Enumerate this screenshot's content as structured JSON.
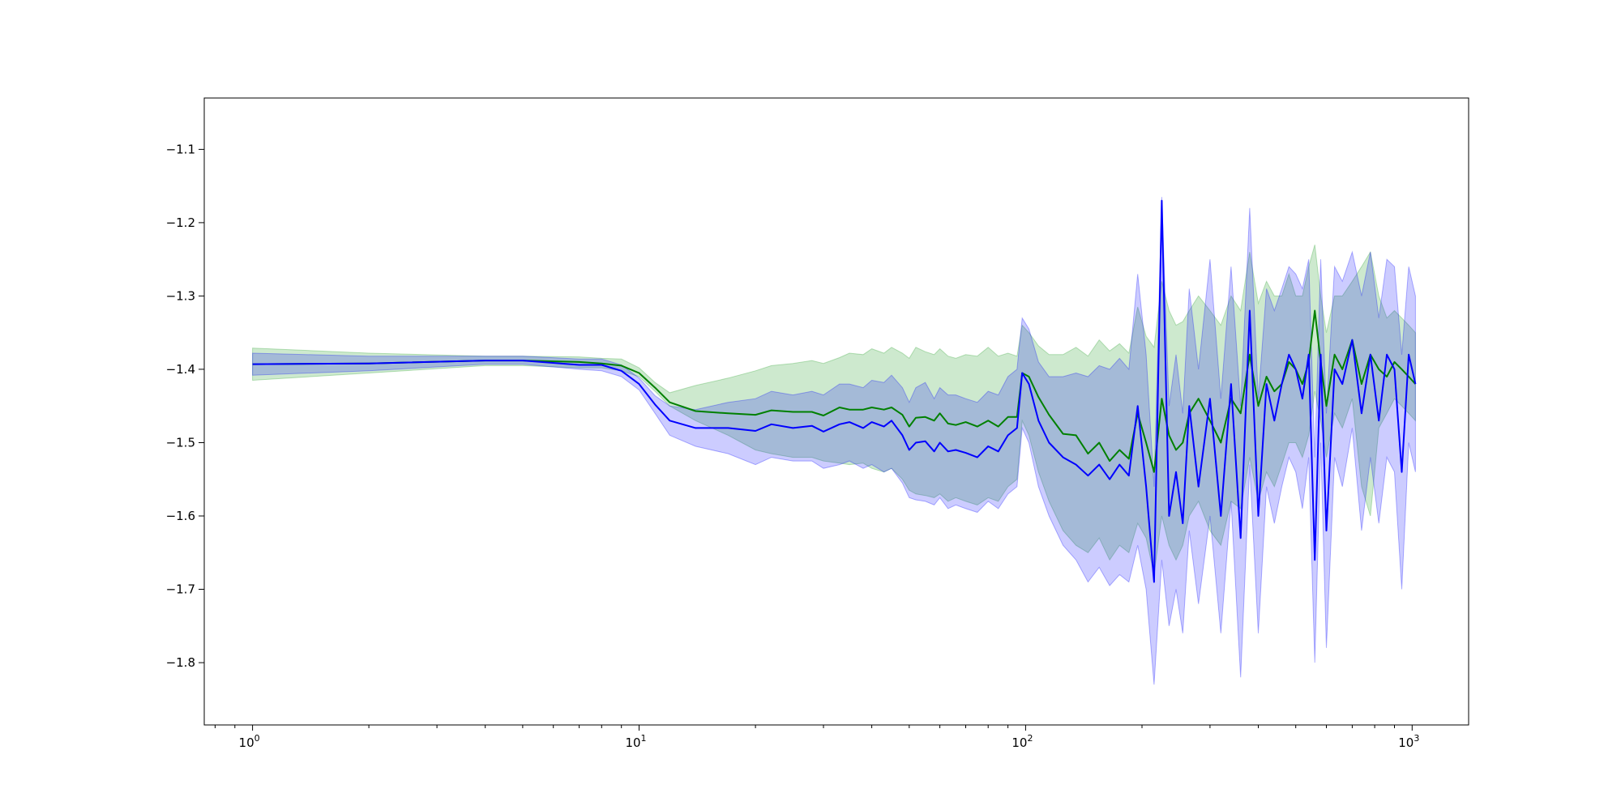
{
  "chart_data": {
    "type": "line",
    "title": "",
    "xlabel": "",
    "ylabel": "",
    "x_scale": "log",
    "xlim": [
      0.75,
      1400
    ],
    "ylim": [
      -1.885,
      -1.03
    ],
    "grid": false,
    "legend": "none",
    "x_ticks": [
      {
        "base": "10",
        "exp": "0",
        "value": 1
      },
      {
        "base": "10",
        "exp": "1",
        "value": 10
      },
      {
        "base": "10",
        "exp": "2",
        "value": 100
      },
      {
        "base": "10",
        "exp": "3",
        "value": 1000
      }
    ],
    "y_ticks": [
      {
        "label": "−1.1",
        "value": -1.1
      },
      {
        "label": "−1.2",
        "value": -1.2
      },
      {
        "label": "−1.3",
        "value": -1.3
      },
      {
        "label": "−1.4",
        "value": -1.4
      },
      {
        "label": "−1.5",
        "value": -1.5
      },
      {
        "label": "−1.6",
        "value": -1.6
      },
      {
        "label": "−1.7",
        "value": -1.7
      },
      {
        "label": "−1.8",
        "value": -1.8
      }
    ],
    "series": [
      {
        "color": "#008000",
        "band_color": "#4caf50",
        "band_opacity": 0.28,
        "x": [
          1,
          2,
          4,
          5,
          7,
          8,
          9,
          10,
          11,
          12,
          14,
          17,
          20,
          22,
          25,
          28,
          30,
          33,
          35,
          38,
          40,
          43,
          45,
          48,
          50,
          52,
          55,
          58,
          60,
          63,
          66,
          70,
          75,
          80,
          85,
          90,
          95,
          98,
          102,
          108,
          115,
          125,
          135,
          145,
          155,
          165,
          175,
          185,
          195,
          205,
          215,
          225,
          235,
          245,
          255,
          265,
          280,
          300,
          320,
          340,
          360,
          380,
          400,
          420,
          440,
          460,
          480,
          500,
          520,
          540,
          560,
          580,
          600,
          630,
          660,
          700,
          740,
          780,
          820,
          860,
          900,
          940,
          980,
          1020
        ],
        "y": [
          -1.393,
          -1.392,
          -1.388,
          -1.388,
          -1.39,
          -1.392,
          -1.395,
          -1.405,
          -1.425,
          -1.445,
          -1.457,
          -1.46,
          -1.462,
          -1.456,
          -1.458,
          -1.458,
          -1.463,
          -1.452,
          -1.455,
          -1.455,
          -1.452,
          -1.455,
          -1.452,
          -1.462,
          -1.478,
          -1.466,
          -1.465,
          -1.47,
          -1.46,
          -1.474,
          -1.476,
          -1.472,
          -1.478,
          -1.47,
          -1.478,
          -1.465,
          -1.465,
          -1.405,
          -1.41,
          -1.438,
          -1.462,
          -1.488,
          -1.49,
          -1.515,
          -1.5,
          -1.525,
          -1.51,
          -1.522,
          -1.46,
          -1.5,
          -1.54,
          -1.44,
          -1.49,
          -1.51,
          -1.5,
          -1.46,
          -1.44,
          -1.47,
          -1.5,
          -1.44,
          -1.46,
          -1.38,
          -1.45,
          -1.41,
          -1.43,
          -1.42,
          -1.39,
          -1.4,
          -1.42,
          -1.39,
          -1.32,
          -1.39,
          -1.45,
          -1.38,
          -1.4,
          -1.36,
          -1.42,
          -1.38,
          -1.4,
          -1.41,
          -1.39,
          -1.4,
          -1.41,
          -1.42
        ],
        "lower": [
          -1.415,
          -1.405,
          -1.395,
          -1.395,
          -1.398,
          -1.398,
          -1.402,
          -1.41,
          -1.43,
          -1.45,
          -1.47,
          -1.49,
          -1.51,
          -1.515,
          -1.52,
          -1.52,
          -1.525,
          -1.528,
          -1.53,
          -1.528,
          -1.535,
          -1.54,
          -1.535,
          -1.55,
          -1.565,
          -1.57,
          -1.572,
          -1.575,
          -1.57,
          -1.58,
          -1.575,
          -1.58,
          -1.585,
          -1.575,
          -1.58,
          -1.56,
          -1.55,
          -1.47,
          -1.49,
          -1.54,
          -1.58,
          -1.62,
          -1.64,
          -1.65,
          -1.63,
          -1.66,
          -1.64,
          -1.65,
          -1.61,
          -1.63,
          -1.68,
          -1.6,
          -1.64,
          -1.66,
          -1.64,
          -1.6,
          -1.58,
          -1.62,
          -1.64,
          -1.58,
          -1.59,
          -1.52,
          -1.58,
          -1.54,
          -1.56,
          -1.53,
          -1.5,
          -1.5,
          -1.52,
          -1.49,
          -1.43,
          -1.47,
          -1.52,
          -1.46,
          -1.48,
          -1.44,
          -1.56,
          -1.6,
          -1.48,
          -1.46,
          -1.44,
          -1.45,
          -1.46,
          -1.47
        ],
        "upper": [
          -1.371,
          -1.378,
          -1.382,
          -1.382,
          -1.383,
          -1.385,
          -1.386,
          -1.398,
          -1.418,
          -1.432,
          -1.422,
          -1.412,
          -1.402,
          -1.395,
          -1.392,
          -1.388,
          -1.392,
          -1.384,
          -1.378,
          -1.38,
          -1.372,
          -1.378,
          -1.37,
          -1.378,
          -1.385,
          -1.37,
          -1.376,
          -1.38,
          -1.372,
          -1.382,
          -1.385,
          -1.38,
          -1.382,
          -1.37,
          -1.382,
          -1.378,
          -1.382,
          -1.34,
          -1.35,
          -1.368,
          -1.38,
          -1.38,
          -1.37,
          -1.382,
          -1.36,
          -1.375,
          -1.365,
          -1.378,
          -1.315,
          -1.355,
          -1.37,
          -1.28,
          -1.32,
          -1.34,
          -1.335,
          -1.32,
          -1.3,
          -1.32,
          -1.34,
          -1.3,
          -1.32,
          -1.24,
          -1.31,
          -1.28,
          -1.3,
          -1.3,
          -1.27,
          -1.3,
          -1.3,
          -1.26,
          -1.23,
          -1.3,
          -1.35,
          -1.3,
          -1.3,
          -1.28,
          -1.26,
          -1.24,
          -1.3,
          -1.33,
          -1.32,
          -1.33,
          -1.34,
          -1.35
        ]
      },
      {
        "color": "#0000ff",
        "band_color": "#0000ff",
        "band_opacity": 0.2,
        "x": [
          1,
          2,
          4,
          5,
          7,
          8,
          9,
          10,
          11,
          12,
          14,
          17,
          20,
          22,
          25,
          28,
          30,
          33,
          35,
          38,
          40,
          43,
          45,
          48,
          50,
          52,
          55,
          58,
          60,
          63,
          66,
          70,
          75,
          80,
          85,
          90,
          95,
          98,
          102,
          108,
          115,
          125,
          135,
          145,
          155,
          165,
          175,
          185,
          195,
          205,
          215,
          225,
          235,
          245,
          255,
          265,
          280,
          300,
          320,
          340,
          360,
          380,
          400,
          420,
          440,
          460,
          480,
          500,
          520,
          540,
          560,
          580,
          600,
          630,
          660,
          700,
          740,
          780,
          820,
          860,
          900,
          940,
          980,
          1020
        ],
        "y": [
          -1.393,
          -1.392,
          -1.388,
          -1.388,
          -1.394,
          -1.394,
          -1.402,
          -1.42,
          -1.448,
          -1.47,
          -1.48,
          -1.48,
          -1.484,
          -1.475,
          -1.48,
          -1.477,
          -1.485,
          -1.475,
          -1.472,
          -1.48,
          -1.472,
          -1.478,
          -1.47,
          -1.49,
          -1.51,
          -1.5,
          -1.498,
          -1.512,
          -1.5,
          -1.512,
          -1.51,
          -1.514,
          -1.52,
          -1.505,
          -1.512,
          -1.49,
          -1.48,
          -1.405,
          -1.42,
          -1.47,
          -1.5,
          -1.52,
          -1.53,
          -1.545,
          -1.53,
          -1.55,
          -1.53,
          -1.545,
          -1.45,
          -1.56,
          -1.69,
          -1.17,
          -1.6,
          -1.54,
          -1.61,
          -1.45,
          -1.56,
          -1.44,
          -1.6,
          -1.42,
          -1.63,
          -1.32,
          -1.6,
          -1.42,
          -1.47,
          -1.42,
          -1.38,
          -1.4,
          -1.44,
          -1.38,
          -1.66,
          -1.38,
          -1.62,
          -1.4,
          -1.42,
          -1.36,
          -1.46,
          -1.38,
          -1.47,
          -1.38,
          -1.4,
          -1.54,
          -1.38,
          -1.42
        ],
        "lower": [
          -1.408,
          -1.402,
          -1.393,
          -1.393,
          -1.4,
          -1.402,
          -1.41,
          -1.428,
          -1.46,
          -1.49,
          -1.505,
          -1.515,
          -1.53,
          -1.52,
          -1.525,
          -1.525,
          -1.535,
          -1.53,
          -1.525,
          -1.535,
          -1.53,
          -1.54,
          -1.535,
          -1.555,
          -1.575,
          -1.578,
          -1.58,
          -1.585,
          -1.575,
          -1.59,
          -1.585,
          -1.59,
          -1.595,
          -1.58,
          -1.59,
          -1.57,
          -1.56,
          -1.48,
          -1.5,
          -1.56,
          -1.6,
          -1.64,
          -1.66,
          -1.69,
          -1.67,
          -1.695,
          -1.68,
          -1.69,
          -1.64,
          -1.7,
          -1.83,
          -1.66,
          -1.75,
          -1.7,
          -1.76,
          -1.62,
          -1.72,
          -1.6,
          -1.76,
          -1.58,
          -1.82,
          -1.53,
          -1.76,
          -1.56,
          -1.61,
          -1.56,
          -1.52,
          -1.54,
          -1.59,
          -1.52,
          -1.8,
          -1.5,
          -1.78,
          -1.52,
          -1.56,
          -1.48,
          -1.62,
          -1.52,
          -1.61,
          -1.52,
          -1.54,
          -1.7,
          -1.5,
          -1.54
        ],
        "upper": [
          -1.378,
          -1.382,
          -1.382,
          -1.382,
          -1.386,
          -1.386,
          -1.394,
          -1.412,
          -1.436,
          -1.45,
          -1.455,
          -1.445,
          -1.44,
          -1.43,
          -1.435,
          -1.43,
          -1.435,
          -1.42,
          -1.42,
          -1.425,
          -1.415,
          -1.418,
          -1.408,
          -1.425,
          -1.445,
          -1.425,
          -1.418,
          -1.44,
          -1.425,
          -1.435,
          -1.435,
          -1.44,
          -1.445,
          -1.43,
          -1.435,
          -1.41,
          -1.4,
          -1.33,
          -1.345,
          -1.39,
          -1.41,
          -1.41,
          -1.405,
          -1.41,
          -1.395,
          -1.4,
          -1.385,
          -1.4,
          -1.27,
          -1.38,
          -1.56,
          -1.165,
          -1.45,
          -1.38,
          -1.46,
          -1.29,
          -1.4,
          -1.25,
          -1.44,
          -1.26,
          -1.45,
          -1.18,
          -1.44,
          -1.29,
          -1.32,
          -1.29,
          -1.26,
          -1.27,
          -1.29,
          -1.25,
          -1.52,
          -1.25,
          -1.46,
          -1.26,
          -1.28,
          -1.24,
          -1.3,
          -1.24,
          -1.33,
          -1.25,
          -1.26,
          -1.38,
          -1.26,
          -1.3
        ]
      }
    ]
  }
}
